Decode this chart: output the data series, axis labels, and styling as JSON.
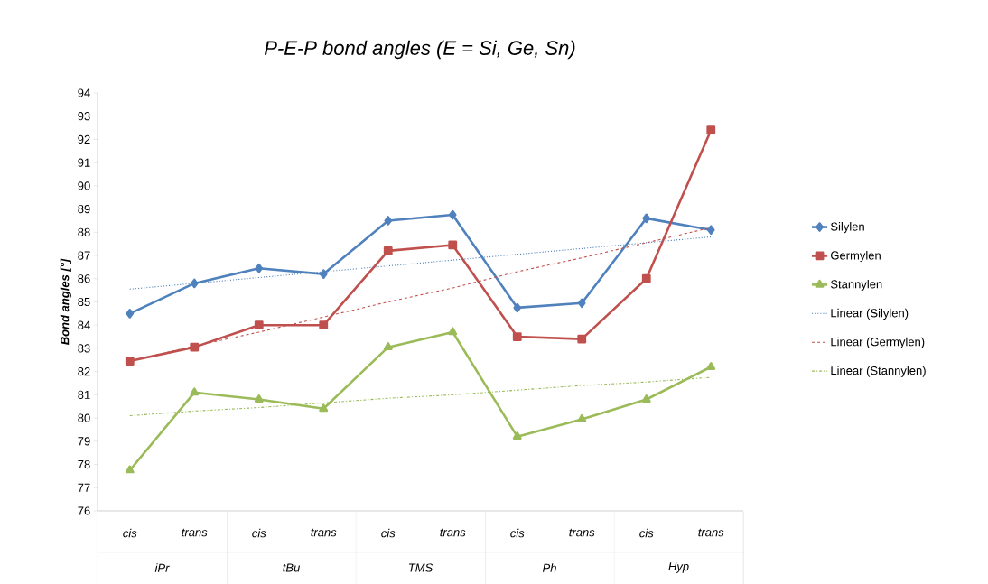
{
  "chart_data": {
    "type": "line",
    "title": "P-E-P bond angles (E = Si, Ge, Sn)",
    "ylabel": "Bond angles [°]",
    "categories": [
      "cis",
      "trans",
      "cis",
      "trans",
      "cis",
      "trans",
      "cis",
      "trans",
      "cis",
      "trans"
    ],
    "annotations": [
      "iPr",
      "tBu",
      "TMS",
      "Ph",
      "Hyp"
    ],
    "ylim": [
      76,
      94
    ],
    "yticks": [
      76,
      77,
      78,
      79,
      80,
      81,
      82,
      83,
      84,
      85,
      86,
      87,
      88,
      89,
      90,
      91,
      92,
      93,
      94
    ],
    "grid": false,
    "legend": "right",
    "series": [
      {
        "name": "Silylen",
        "color": "#4f81bd",
        "marker": "diamond",
        "line_style": "solid",
        "values": [
          84.5,
          85.8,
          86.45,
          86.2,
          88.5,
          88.75,
          84.75,
          84.95,
          88.6,
          88.1
        ]
      },
      {
        "name": "Germylen",
        "color": "#c0504d",
        "marker": "square",
        "line_style": "solid",
        "values": [
          82.45,
          83.05,
          84.0,
          84.0,
          87.2,
          87.45,
          83.5,
          83.4,
          86.0,
          92.4
        ]
      },
      {
        "name": "Stannylen",
        "color": "#9bbb59",
        "marker": "triangle",
        "line_style": "solid",
        "values": [
          77.75,
          81.1,
          80.8,
          80.4,
          83.05,
          83.7,
          79.2,
          79.95,
          80.8,
          82.2
        ]
      },
      {
        "name": "Linear (Silylen)",
        "color": "#4f81bd",
        "marker": "none",
        "line_style": "dotted",
        "values": [
          85.55,
          85.8,
          86.05,
          86.3,
          86.55,
          86.8,
          87.05,
          87.3,
          87.55,
          87.8
        ]
      },
      {
        "name": "Linear (Germylen)",
        "color": "#c0504d",
        "marker": "none",
        "line_style": "dashed",
        "values": [
          82.45,
          83.1,
          83.7,
          84.35,
          85,
          85.6,
          86.3,
          86.9,
          87.55,
          88.2
        ]
      },
      {
        "name": "Linear (Stannylen)",
        "color": "#9bbb59",
        "marker": "none",
        "line_style": "dashdot",
        "values": [
          80.1,
          80.3,
          80.45,
          80.65,
          80.85,
          81,
          81.2,
          81.4,
          81.55,
          81.75
        ]
      }
    ]
  }
}
